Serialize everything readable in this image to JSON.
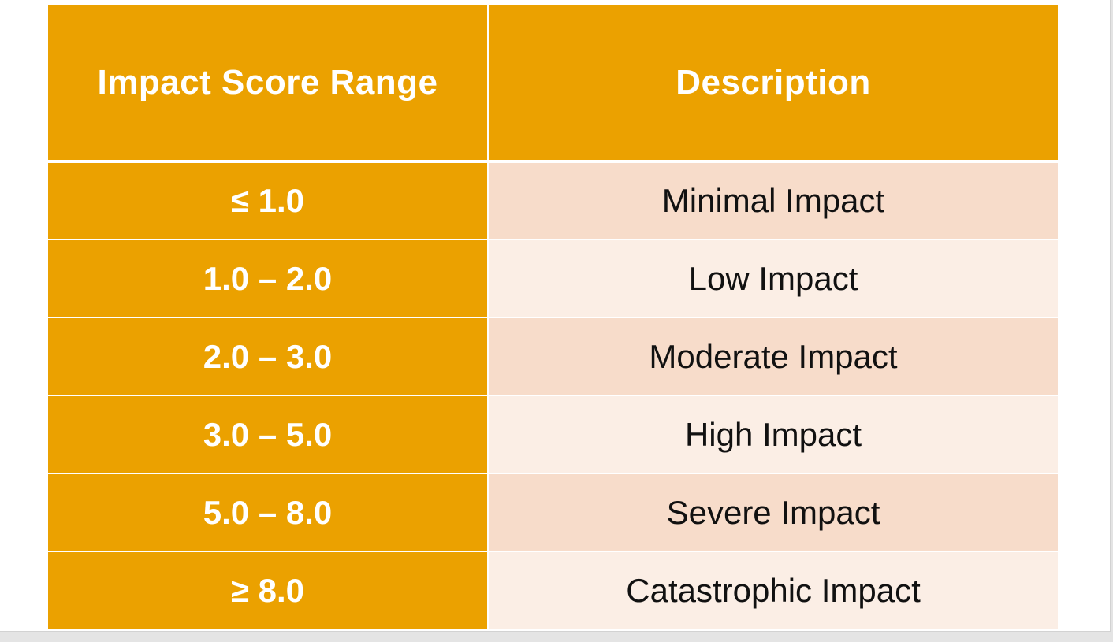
{
  "table": {
    "headers": {
      "range": "Impact Score Range",
      "description": "Description"
    },
    "rows": [
      {
        "range": "≤ 1.0",
        "description": "Minimal Impact"
      },
      {
        "range": "1.0 – 2.0",
        "description": "Low Impact"
      },
      {
        "range": "2.0 – 3.0",
        "description": "Moderate Impact"
      },
      {
        "range": "3.0 – 5.0",
        "description": "High Impact"
      },
      {
        "range": "5.0 – 8.0",
        "description": "Severe Impact"
      },
      {
        "range": "≥ 8.0",
        "description": "Catastrophic Impact"
      }
    ]
  },
  "colors": {
    "header_background": "#eba100",
    "header_text": "#ffffff",
    "row_band_dark": "#f7dcca",
    "row_band_light": "#fbeee5"
  }
}
